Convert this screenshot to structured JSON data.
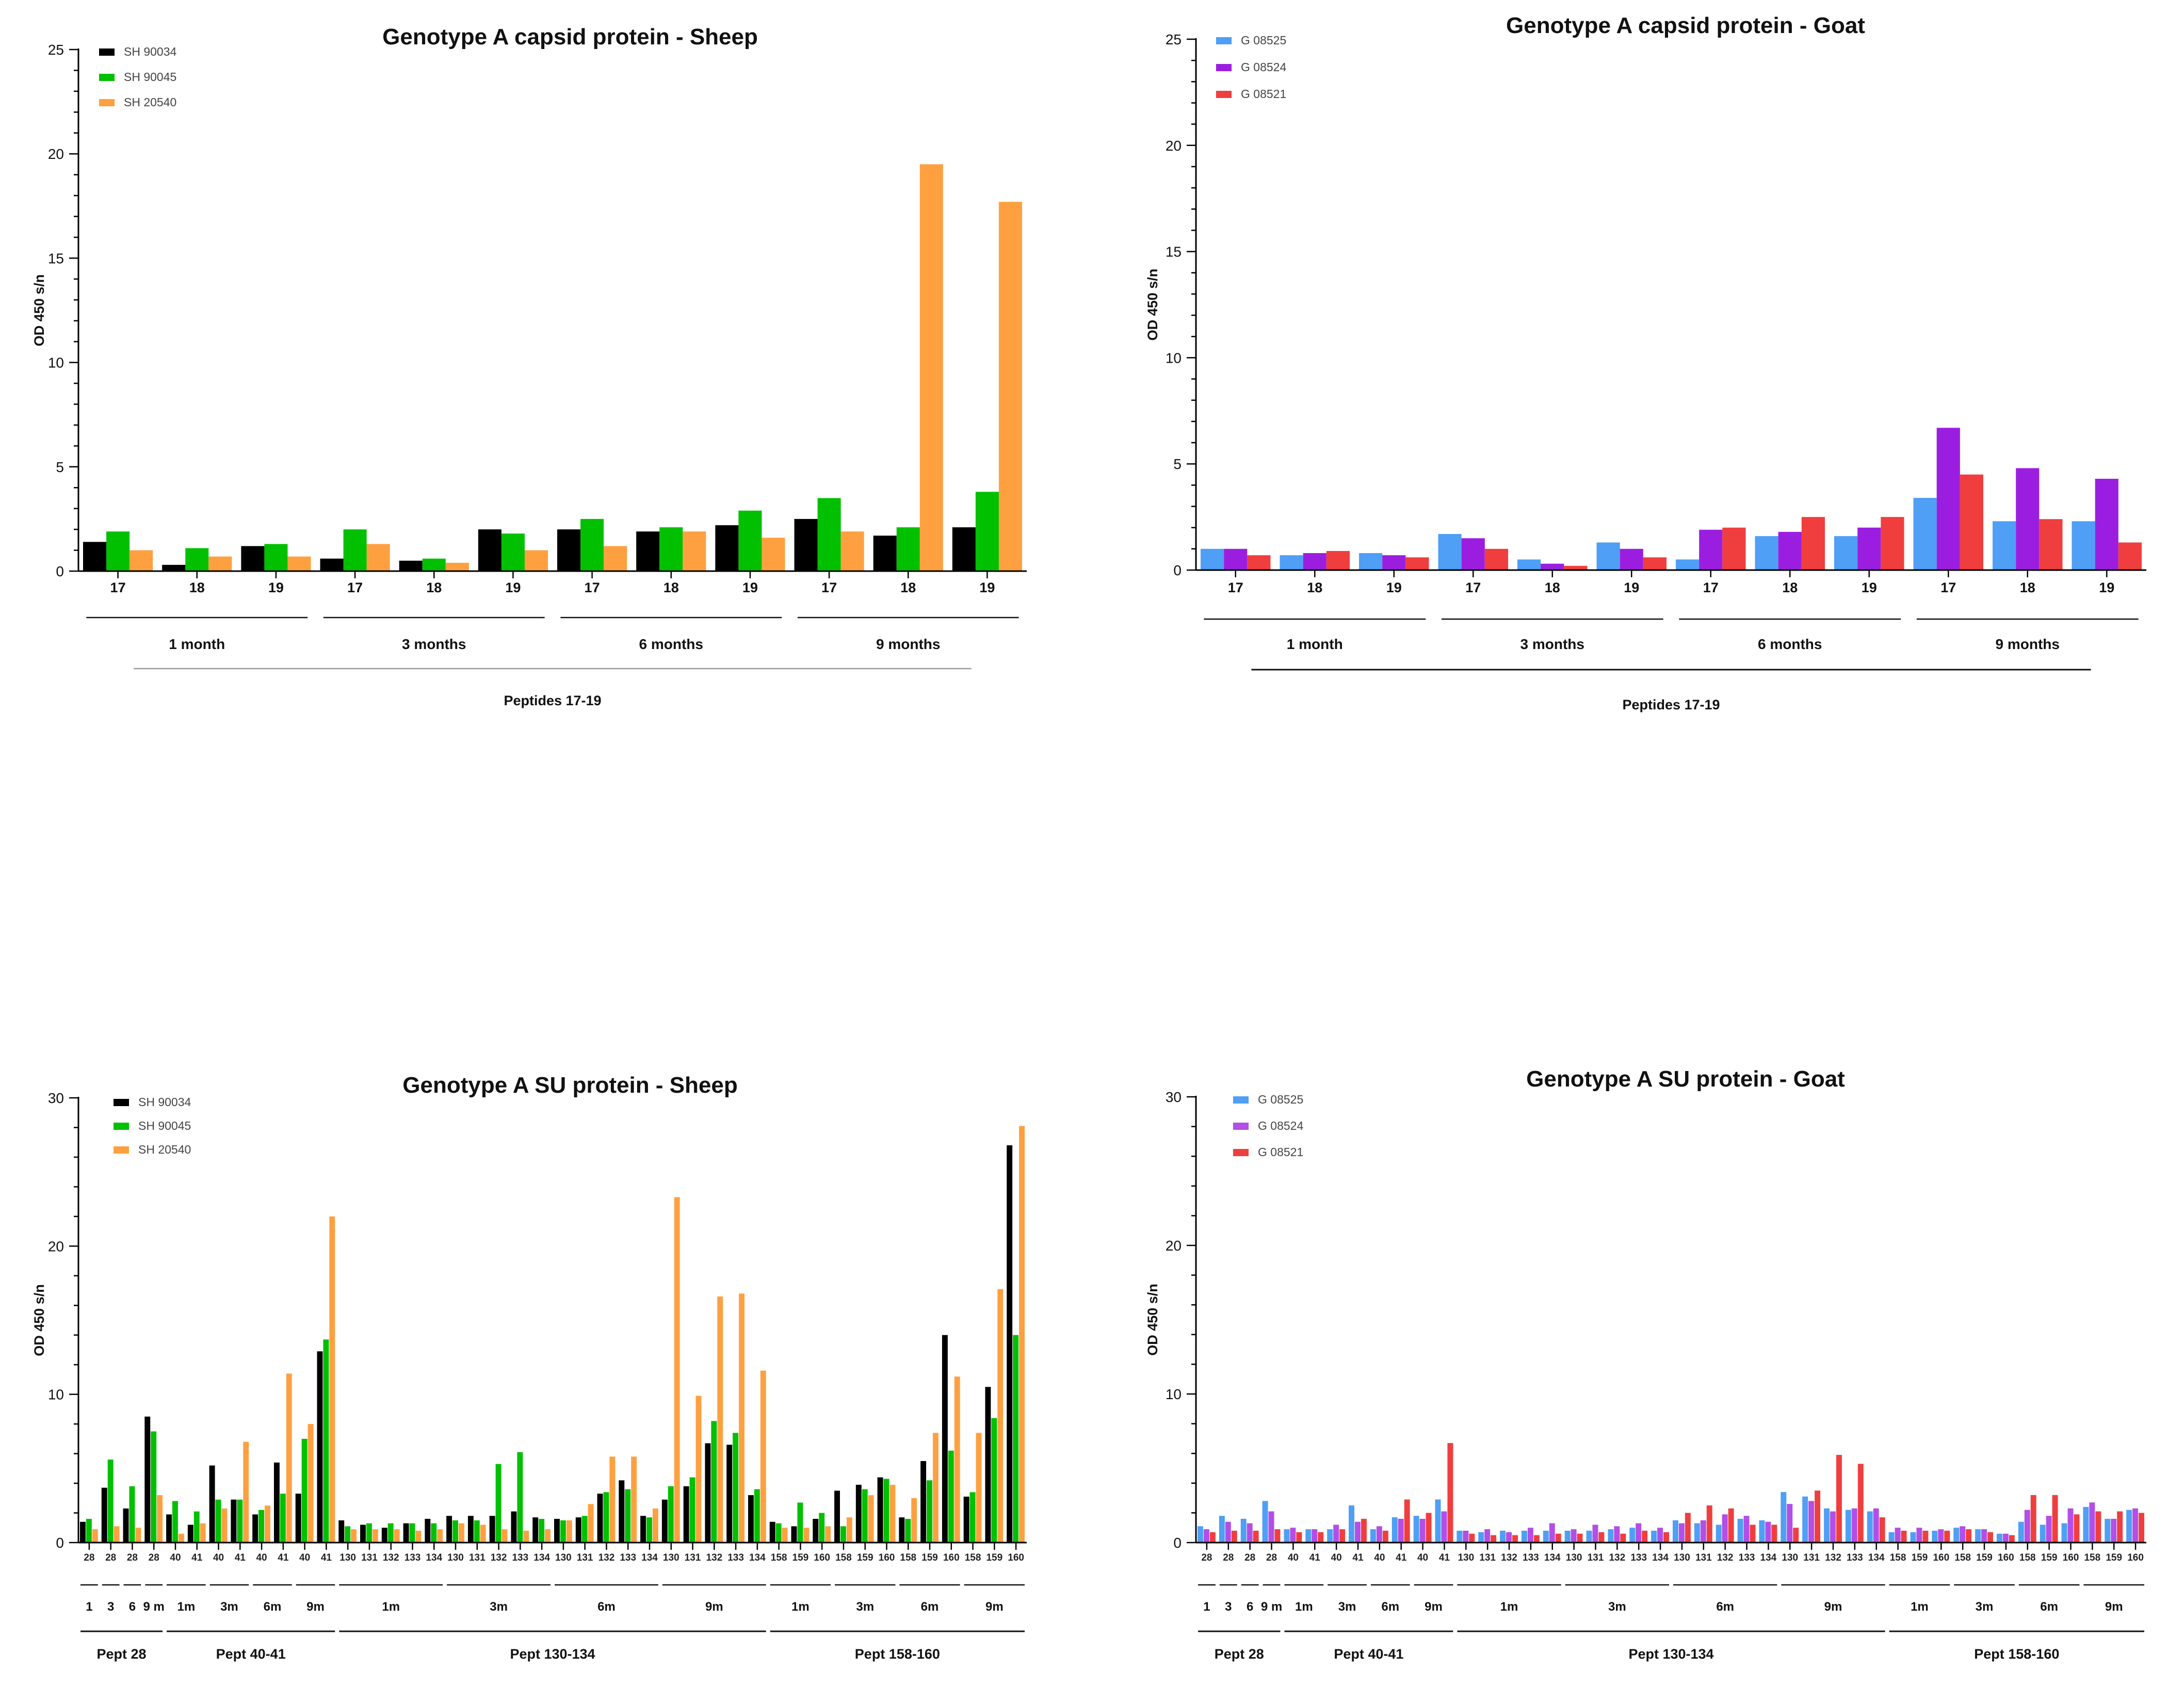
{
  "chart_data": [
    {
      "id": "c1",
      "type": "bar",
      "title": "Genotype A capsid protein - Sheep",
      "ylabel": "OD 450 s/n",
      "xlabel": "Peptides 17-19",
      "ylim": [
        0,
        25
      ],
      "yticks": [
        0,
        5,
        10,
        15,
        20,
        25
      ],
      "legend_position": "top-left",
      "categories": [
        "17",
        "18",
        "19",
        "17",
        "18",
        "19",
        "17",
        "18",
        "19",
        "17",
        "18",
        "19"
      ],
      "groups": [
        {
          "label": "1 month",
          "size": 3
        },
        {
          "label": "3 months",
          "size": 3
        },
        {
          "label": "6 months",
          "size": 3
        },
        {
          "label": "9 months",
          "size": 3
        }
      ],
      "series": [
        {
          "name": "SH 90034",
          "color": "#000000",
          "values": [
            1.4,
            0.3,
            1.2,
            0.6,
            0.5,
            2.0,
            2.0,
            1.9,
            2.2,
            2.5,
            1.7,
            2.1
          ]
        },
        {
          "name": "SH 90045",
          "color": "#00c000",
          "values": [
            1.9,
            1.1,
            1.3,
            2.0,
            0.6,
            1.8,
            2.5,
            2.1,
            2.9,
            3.5,
            2.1,
            3.8
          ]
        },
        {
          "name": "SH 20540",
          "color": "#ffa040",
          "values": [
            1.0,
            0.7,
            0.7,
            1.3,
            0.4,
            1.0,
            1.2,
            1.9,
            1.6,
            1.9,
            19.5,
            17.7
          ]
        }
      ]
    },
    {
      "id": "c2",
      "type": "bar",
      "title": "Genotype A capsid protein - Goat",
      "ylabel": "OD 450 s/n",
      "xlabel": "Peptides 17-19",
      "ylim": [
        0,
        25
      ],
      "yticks": [
        0,
        5,
        10,
        15,
        20,
        25
      ],
      "legend_position": "top-left",
      "categories": [
        "17",
        "18",
        "19",
        "17",
        "18",
        "19",
        "17",
        "18",
        "19",
        "17",
        "18",
        "19"
      ],
      "groups": [
        {
          "label": "1 month",
          "size": 3
        },
        {
          "label": "3 months",
          "size": 3
        },
        {
          "label": "6 months",
          "size": 3
        },
        {
          "label": "9 months",
          "size": 3
        }
      ],
      "series": [
        {
          "name": "G 08525",
          "color": "#4e9ff5",
          "values": [
            1.0,
            0.7,
            0.8,
            1.7,
            0.5,
            1.3,
            0.5,
            1.6,
            1.6,
            3.4,
            2.3,
            2.3
          ]
        },
        {
          "name": "G 08524",
          "color": "#9b1ee0",
          "values": [
            1.0,
            0.8,
            0.7,
            1.5,
            0.3,
            1.0,
            1.9,
            1.8,
            2.0,
            6.7,
            4.8,
            4.3
          ]
        },
        {
          "name": "G 08521",
          "color": "#f03e3e",
          "values": [
            0.7,
            0.9,
            0.6,
            1.0,
            0.2,
            0.6,
            2.0,
            2.5,
            2.5,
            4.5,
            2.4,
            1.3
          ]
        }
      ]
    },
    {
      "id": "c3",
      "type": "bar",
      "title": "Genotype A SU protein - Sheep",
      "ylabel": "OD 450 s/n",
      "ylim": [
        0,
        30
      ],
      "yticks": [
        0,
        10,
        20,
        30
      ],
      "legend_position": "top-left",
      "categories": [
        "28",
        "28",
        "28",
        "28",
        "40",
        "41",
        "40",
        "41",
        "40",
        "41",
        "40",
        "41",
        "130",
        "131",
        "132",
        "133",
        "134",
        "130",
        "131",
        "132",
        "133",
        "134",
        "130",
        "131",
        "132",
        "133",
        "134",
        "130",
        "131",
        "132",
        "133",
        "134",
        "158",
        "159",
        "160",
        "158",
        "159",
        "160",
        "158",
        "159",
        "160",
        "158",
        "159",
        "160"
      ],
      "groups": [
        {
          "label": "1",
          "size": 1
        },
        {
          "label": "3",
          "size": 1
        },
        {
          "label": "6",
          "size": 1
        },
        {
          "label": "9 m",
          "size": 1
        },
        {
          "label": "1m",
          "size": 2
        },
        {
          "label": "3m",
          "size": 2
        },
        {
          "label": "6m",
          "size": 2
        },
        {
          "label": "9m",
          "size": 2
        },
        {
          "label": "1m",
          "size": 5
        },
        {
          "label": "3m",
          "size": 5
        },
        {
          "label": "6m",
          "size": 5
        },
        {
          "label": "9m",
          "size": 5
        },
        {
          "label": "1m",
          "size": 3
        },
        {
          "label": "3m",
          "size": 3
        },
        {
          "label": "6m",
          "size": 3
        },
        {
          "label": "9m",
          "size": 3
        }
      ],
      "segments": [
        {
          "label": "Pept 28",
          "size": 4
        },
        {
          "label": "Pept 40-41",
          "size": 8
        },
        {
          "label": "Pept 130-134",
          "size": 20
        },
        {
          "label": "Pept 158-160",
          "size": 12
        }
      ],
      "series": [
        {
          "name": "SH 90034",
          "color": "#000000",
          "values": [
            1.4,
            3.7,
            2.3,
            8.5,
            1.9,
            1.2,
            5.2,
            2.9,
            1.9,
            5.4,
            3.3,
            12.9,
            1.5,
            1.2,
            1.0,
            1.3,
            1.6,
            1.8,
            1.8,
            1.8,
            2.1,
            1.7,
            1.6,
            1.7,
            3.3,
            4.2,
            1.8,
            2.9,
            3.8,
            6.7,
            6.6,
            3.2,
            1.4,
            1.1,
            1.6,
            3.5,
            3.9,
            4.4,
            1.7,
            5.5,
            14.0,
            3.1,
            10.5,
            26.8
          ]
        },
        {
          "name": "SH 90045",
          "color": "#00c000",
          "values": [
            1.6,
            5.6,
            3.8,
            7.5,
            2.8,
            2.1,
            2.9,
            2.9,
            2.2,
            3.3,
            7.0,
            13.7,
            1.1,
            1.3,
            1.3,
            1.3,
            1.3,
            1.5,
            1.5,
            5.3,
            6.1,
            1.6,
            1.5,
            1.8,
            3.4,
            3.6,
            1.7,
            3.8,
            4.4,
            8.2,
            7.4,
            3.6,
            1.3,
            2.7,
            2.0,
            1.1,
            3.6,
            4.3,
            1.6,
            4.2,
            6.2,
            3.4,
            8.4,
            14.0
          ]
        },
        {
          "name": "SH 20540",
          "color": "#ffa040",
          "values": [
            0.9,
            1.1,
            1.0,
            3.2,
            0.6,
            1.3,
            2.3,
            6.8,
            2.5,
            11.4,
            8.0,
            22.0,
            0.9,
            0.9,
            0.9,
            0.8,
            0.9,
            1.3,
            1.2,
            0.9,
            0.8,
            0.9,
            1.5,
            2.6,
            5.8,
            5.8,
            2.3,
            23.3,
            9.9,
            16.6,
            16.8,
            11.6,
            1.0,
            1.0,
            1.1,
            1.7,
            3.2,
            3.9,
            3.0,
            7.4,
            11.2,
            7.4,
            17.1,
            28.1
          ]
        }
      ]
    },
    {
      "id": "c4",
      "type": "bar",
      "title": "Genotype A SU protein - Goat",
      "ylabel": "OD 450 s/n",
      "ylim": [
        0,
        30
      ],
      "yticks": [
        0,
        10,
        20,
        30
      ],
      "legend_position": "top-left",
      "categories": [
        "28",
        "28",
        "28",
        "28",
        "40",
        "41",
        "40",
        "41",
        "40",
        "41",
        "40",
        "41",
        "130",
        "131",
        "132",
        "133",
        "134",
        "130",
        "131",
        "132",
        "133",
        "134",
        "130",
        "131",
        "132",
        "133",
        "134",
        "130",
        "131",
        "132",
        "133",
        "134",
        "158",
        "159",
        "160",
        "158",
        "159",
        "160",
        "158",
        "159",
        "160",
        "158",
        "159",
        "160"
      ],
      "groups": [
        {
          "label": "1",
          "size": 1
        },
        {
          "label": "3",
          "size": 1
        },
        {
          "label": "6",
          "size": 1
        },
        {
          "label": "9 m",
          "size": 1
        },
        {
          "label": "1m",
          "size": 2
        },
        {
          "label": "3m",
          "size": 2
        },
        {
          "label": "6m",
          "size": 2
        },
        {
          "label": "9m",
          "size": 2
        },
        {
          "label": "1m",
          "size": 5
        },
        {
          "label": "3m",
          "size": 5
        },
        {
          "label": "6m",
          "size": 5
        },
        {
          "label": "9m",
          "size": 5
        },
        {
          "label": "1m",
          "size": 3
        },
        {
          "label": "3m",
          "size": 3
        },
        {
          "label": "6m",
          "size": 3
        },
        {
          "label": "9m",
          "size": 3
        }
      ],
      "segments": [
        {
          "label": "Pept 28",
          "size": 4
        },
        {
          "label": "Pept 40-41",
          "size": 8
        },
        {
          "label": "Pept 130-134",
          "size": 20
        },
        {
          "label": "Pept 158-160",
          "size": 12
        }
      ],
      "series": [
        {
          "name": "G 08525",
          "color": "#4e9ff5",
          "values": [
            1.1,
            1.8,
            1.6,
            2.8,
            0.9,
            0.9,
            0.9,
            2.5,
            0.9,
            1.7,
            1.8,
            2.9,
            0.8,
            0.7,
            0.8,
            0.8,
            0.8,
            0.8,
            0.8,
            0.9,
            1.0,
            0.8,
            1.5,
            1.3,
            1.2,
            1.6,
            1.5,
            3.4,
            3.1,
            2.3,
            2.2,
            2.1,
            0.7,
            0.7,
            0.8,
            1.0,
            0.9,
            0.6,
            1.4,
            1.2,
            1.3,
            2.4,
            1.6,
            2.2
          ]
        },
        {
          "name": "G 08524",
          "color": "#b34ee6",
          "values": [
            0.9,
            1.4,
            1.3,
            2.1,
            1.0,
            0.9,
            1.2,
            1.4,
            1.1,
            1.6,
            1.6,
            2.1,
            0.8,
            0.9,
            0.7,
            1.0,
            1.3,
            0.9,
            1.2,
            1.1,
            1.3,
            1.0,
            1.3,
            1.5,
            1.9,
            1.8,
            1.4,
            2.6,
            2.8,
            2.1,
            2.3,
            2.3,
            1.0,
            1.0,
            0.9,
            1.1,
            0.9,
            0.6,
            2.2,
            1.8,
            2.3,
            2.7,
            1.6,
            2.3
          ]
        },
        {
          "name": "G 08521",
          "color": "#f03e3e",
          "values": [
            0.7,
            0.8,
            0.8,
            0.9,
            0.7,
            0.7,
            0.9,
            1.6,
            0.8,
            2.9,
            2.0,
            6.7,
            0.6,
            0.5,
            0.5,
            0.5,
            0.6,
            0.6,
            0.7,
            0.6,
            0.8,
            0.7,
            2.0,
            2.5,
            2.3,
            1.2,
            1.2,
            1.0,
            3.5,
            5.9,
            5.3,
            1.7,
            0.8,
            0.8,
            0.8,
            0.9,
            0.7,
            0.5,
            3.2,
            3.2,
            1.9,
            2.1,
            2.1,
            2.0
          ]
        }
      ]
    }
  ]
}
